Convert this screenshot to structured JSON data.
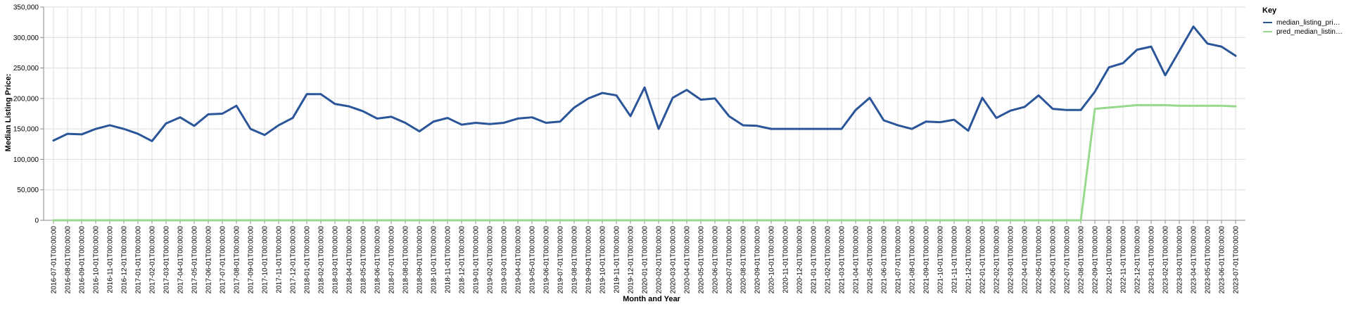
{
  "chart_data": {
    "type": "line",
    "xlabel": "Month and Year",
    "ylabel": "Median Listing Price:",
    "ylim": [
      0,
      350000
    ],
    "yticks": [
      "0",
      "50,000",
      "100,000",
      "150,000",
      "200,000",
      "250,000",
      "300,000",
      "350,000"
    ],
    "grid": true,
    "legend": {
      "title": "Key",
      "placement": "top-right",
      "entries": [
        "median_listing_pri…",
        "pred_median_listin…"
      ]
    },
    "x": [
      "2016-07-01T00:00:00",
      "2016-08-01T00:00:00",
      "2016-09-01T00:00:00",
      "2016-10-01T00:00:00",
      "2016-11-01T00:00:00",
      "2016-12-01T00:00:00",
      "2017-01-01T00:00:00",
      "2017-02-01T00:00:00",
      "2017-03-01T00:00:00",
      "2017-04-01T00:00:00",
      "2017-05-01T00:00:00",
      "2017-06-01T00:00:00",
      "2017-07-01T00:00:00",
      "2017-08-01T00:00:00",
      "2017-09-01T00:00:00",
      "2017-10-01T00:00:00",
      "2017-11-01T00:00:00",
      "2017-12-01T00:00:00",
      "2018-01-01T00:00:00",
      "2018-02-01T00:00:00",
      "2018-03-01T00:00:00",
      "2018-04-01T00:00:00",
      "2018-05-01T00:00:00",
      "2018-06-01T00:00:00",
      "2018-07-01T00:00:00",
      "2018-08-01T00:00:00",
      "2018-09-01T00:00:00",
      "2018-10-01T00:00:00",
      "2018-11-01T00:00:00",
      "2018-12-01T00:00:00",
      "2019-01-01T00:00:00",
      "2019-02-01T00:00:00",
      "2019-03-01T00:00:00",
      "2019-04-01T00:00:00",
      "2019-05-01T00:00:00",
      "2019-06-01T00:00:00",
      "2019-07-01T00:00:00",
      "2019-08-01T00:00:00",
      "2019-09-01T00:00:00",
      "2019-10-01T00:00:00",
      "2019-11-01T00:00:00",
      "2019-12-01T00:00:00",
      "2020-01-01T00:00:00",
      "2020-02-01T00:00:00",
      "2020-03-01T00:00:00",
      "2020-04-01T00:00:00",
      "2020-05-01T00:00:00",
      "2020-06-01T00:00:00",
      "2020-07-01T00:00:00",
      "2020-08-01T00:00:00",
      "2020-09-01T00:00:00",
      "2020-10-01T00:00:00",
      "2020-11-01T00:00:00",
      "2020-12-01T00:00:00",
      "2021-01-01T00:00:00",
      "2021-02-01T00:00:00",
      "2021-03-01T00:00:00",
      "2021-04-01T00:00:00",
      "2021-05-01T00:00:00",
      "2021-06-01T00:00:00",
      "2021-07-01T00:00:00",
      "2021-08-01T00:00:00",
      "2021-09-01T00:00:00",
      "2021-10-01T00:00:00",
      "2021-11-01T00:00:00",
      "2021-12-01T00:00:00",
      "2022-01-01T00:00:00",
      "2022-02-01T00:00:00",
      "2022-03-01T00:00:00",
      "2022-04-01T00:00:00",
      "2022-05-01T00:00:00",
      "2022-06-01T00:00:00",
      "2022-07-01T00:00:00",
      "2022-08-01T00:00:00",
      "2022-09-01T00:00:00",
      "2022-10-01T00:00:00",
      "2022-11-01T00:00:00",
      "2022-12-01T00:00:00",
      "2023-01-01T00:00:00",
      "2023-02-01T00:00:00",
      "2023-03-01T00:00:00",
      "2023-04-01T00:00:00",
      "2023-05-01T00:00:00",
      "2023-06-01T00:00:00",
      "2023-07-01T00:00:00"
    ],
    "series": [
      {
        "name": "median_listing_pri…",
        "color": "#2a5599",
        "values": [
          131000,
          142000,
          141000,
          150000,
          156000,
          150000,
          142000,
          130000,
          159000,
          169000,
          155000,
          174000,
          175000,
          188000,
          150000,
          140000,
          156000,
          168000,
          207000,
          207000,
          191000,
          187000,
          179000,
          167000,
          170000,
          160000,
          146000,
          162000,
          168000,
          157000,
          160000,
          158000,
          160000,
          167000,
          169000,
          160000,
          162000,
          185000,
          200000,
          209000,
          205000,
          171000,
          218000,
          150000,
          201000,
          214000,
          198000,
          200000,
          171000,
          156000,
          155000,
          150000,
          150000,
          150000,
          150000,
          150000,
          150000,
          181000,
          201000,
          164000,
          156000,
          150000,
          162000,
          161000,
          165000,
          147000,
          201000,
          168000,
          180000,
          186000,
          205000,
          183000,
          181000,
          181000,
          211000,
          251000,
          258000,
          280000,
          285000,
          238000,
          278000,
          318000,
          290000,
          285000,
          270000
        ]
      },
      {
        "name": "pred_median_listin…",
        "color": "#98d98e",
        "values": [
          0,
          0,
          0,
          0,
          0,
          0,
          0,
          0,
          0,
          0,
          0,
          0,
          0,
          0,
          0,
          0,
          0,
          0,
          0,
          0,
          0,
          0,
          0,
          0,
          0,
          0,
          0,
          0,
          0,
          0,
          0,
          0,
          0,
          0,
          0,
          0,
          0,
          0,
          0,
          0,
          0,
          0,
          0,
          0,
          0,
          0,
          0,
          0,
          0,
          0,
          0,
          0,
          0,
          0,
          0,
          0,
          0,
          0,
          0,
          0,
          0,
          0,
          0,
          0,
          0,
          0,
          0,
          0,
          0,
          0,
          0,
          0,
          0,
          0,
          183000,
          185000,
          187000,
          189000,
          189000,
          189000,
          188000,
          188000,
          188000,
          188000,
          187000
        ]
      }
    ]
  }
}
